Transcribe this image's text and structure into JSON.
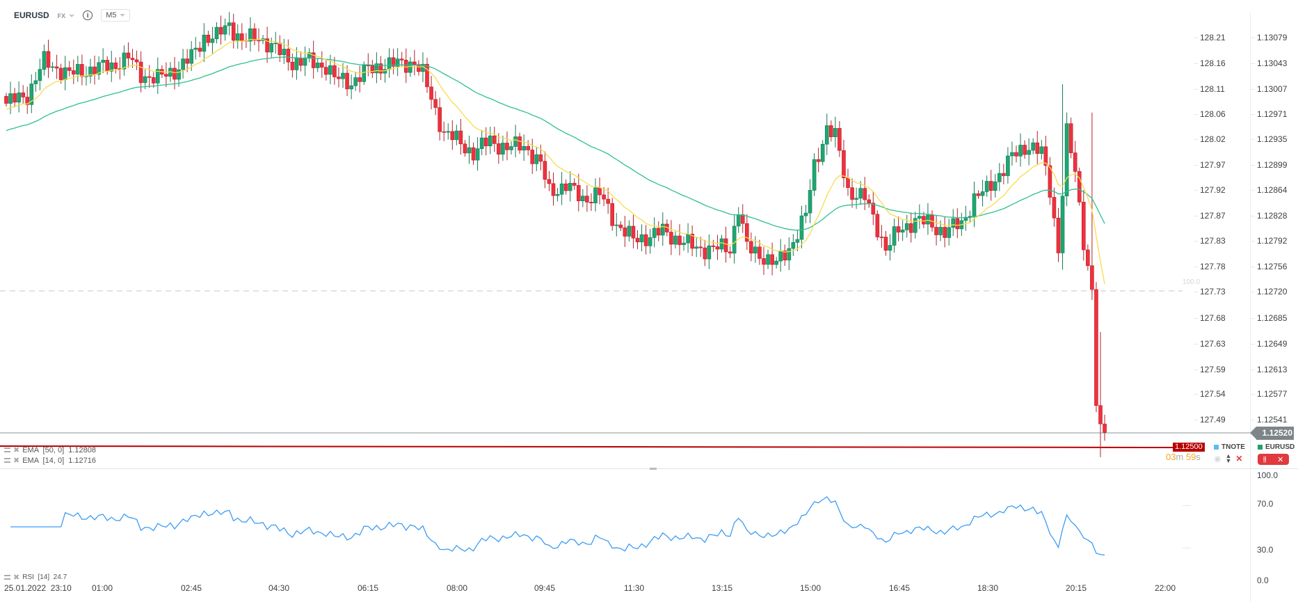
{
  "header": {
    "symbol": "EURUSD",
    "market": "FX",
    "info_icon": "info-icon",
    "timeframe": "M5"
  },
  "price_axis_left": [
    "128.21",
    "128.16",
    "128.11",
    "128.06",
    "128.02",
    "127.97",
    "127.92",
    "127.87",
    "127.83",
    "127.78",
    "127.73",
    "127.68",
    "127.63",
    "127.59",
    "127.54",
    "127.49"
  ],
  "price_axis_right": [
    "1.13079",
    "1.13043",
    "1.13007",
    "1.12971",
    "1.12935",
    "1.12899",
    "1.12864",
    "1.12828",
    "1.12792",
    "1.12756",
    "1.12720",
    "1.12685",
    "1.12649",
    "1.12613",
    "1.12577",
    "1.12541"
  ],
  "current_price": "1.12520",
  "alert_price": "1.12500",
  "dashed_level_label": "100.0",
  "countdown": {
    "min": "03",
    "min_unit": "m",
    "sec": "59",
    "sec_unit": "s"
  },
  "legends": {
    "ema50": "EMA  [50, 0]  1.12808",
    "ema14": "EMA  [14, 0]  1.12716",
    "rsi": "RSI  [14]  24.7",
    "tnote": "TNOTE",
    "eurusd": "EURUSD"
  },
  "colors": {
    "up": "#1fa672",
    "down": "#f0313d",
    "ema14": "#f7dc4a",
    "ema50": "#2cc08f",
    "rsi": "#3b9cf5",
    "tnote": "#5bbcf0",
    "eurusd": "#22a06b",
    "alert": "#b80000"
  },
  "rsi_axis": [
    "100.0",
    "70.0",
    "30.0",
    "0.0"
  ],
  "time_axis": [
    "25.01.2022  23:10",
    "01:00",
    "02:45",
    "04:30",
    "06:15",
    "08:00",
    "09:45",
    "11:30",
    "13:15",
    "15:00",
    "16:45",
    "18:30",
    "20:15",
    "22:00"
  ],
  "chart_data": {
    "type": "candlestick",
    "symbol": "EURUSD",
    "timeframe": "M5",
    "ylim": [
      1.125,
      1.1311
    ],
    "close_anchors_bar_price": [
      [
        0,
        1.12985
      ],
      [
        5,
        1.12997
      ],
      [
        9,
        1.13044
      ],
      [
        15,
        1.13026
      ],
      [
        19,
        1.13032
      ],
      [
        25,
        1.13038
      ],
      [
        29,
        1.1305
      ],
      [
        32,
        1.13026
      ],
      [
        36,
        1.1302
      ],
      [
        40,
        1.13032
      ],
      [
        44,
        1.1305
      ],
      [
        47,
        1.13079
      ],
      [
        50,
        1.13079
      ],
      [
        53,
        1.13097
      ],
      [
        56,
        1.13073
      ],
      [
        60,
        1.13079
      ],
      [
        64,
        1.13061
      ],
      [
        68,
        1.13044
      ],
      [
        72,
        1.13044
      ],
      [
        76,
        1.13038
      ],
      [
        78,
        1.1302
      ],
      [
        82,
        1.13015
      ],
      [
        86,
        1.13032
      ],
      [
        90,
        1.1304
      ],
      [
        94,
        1.1304
      ],
      [
        97,
        1.13044
      ],
      [
        99,
        1.13026
      ],
      [
        101,
        1.12991
      ],
      [
        104,
        1.12944
      ],
      [
        107,
        1.12933
      ],
      [
        111,
        1.12915
      ],
      [
        115,
        1.12933
      ],
      [
        119,
        1.12921
      ],
      [
        123,
        1.12927
      ],
      [
        127,
        1.12897
      ],
      [
        129,
        1.12862
      ],
      [
        133,
        1.12868
      ],
      [
        137,
        1.12851
      ],
      [
        141,
        1.12856
      ],
      [
        145,
        1.12815
      ],
      [
        149,
        1.12792
      ],
      [
        153,
        1.12798
      ],
      [
        156,
        1.12804
      ],
      [
        160,
        1.12792
      ],
      [
        164,
        1.1278
      ],
      [
        168,
        1.1278
      ],
      [
        172,
        1.1278
      ],
      [
        174,
        1.12839
      ],
      [
        176,
        1.1278
      ],
      [
        180,
        1.12769
      ],
      [
        183,
        1.12757
      ],
      [
        186,
        1.1278
      ],
      [
        190,
        1.12827
      ],
      [
        192,
        1.12897
      ],
      [
        195,
        1.1295
      ],
      [
        197,
        1.12938
      ],
      [
        200,
        1.12862
      ],
      [
        204,
        1.12851
      ],
      [
        207,
        1.1281
      ],
      [
        209,
        1.1278
      ],
      [
        212,
        1.12804
      ],
      [
        216,
        1.12821
      ],
      [
        219,
        1.12815
      ],
      [
        223,
        1.12804
      ],
      [
        227,
        1.12815
      ],
      [
        230,
        1.12851
      ],
      [
        233,
        1.12862
      ],
      [
        236,
        1.12886
      ],
      [
        239,
        1.12909
      ],
      [
        243,
        1.12927
      ],
      [
        246,
        1.12915
      ],
      [
        248,
        1.12862
      ],
      [
        250,
        1.1278
      ],
      [
        252,
        1.12944
      ],
      [
        254,
        1.12886
      ],
      [
        256,
        1.12792
      ],
      [
        258,
        1.12722
      ],
      [
        259,
        1.12558
      ],
      [
        260,
        1.12532
      ],
      [
        261,
        1.1252
      ]
    ],
    "indicators": {
      "ema50_last": 1.12808,
      "ema14_last": 1.12716,
      "rsi14_last": 24.7
    },
    "rsi_levels": [
      30,
      70
    ],
    "rsi_ylim": [
      0,
      100
    ]
  }
}
